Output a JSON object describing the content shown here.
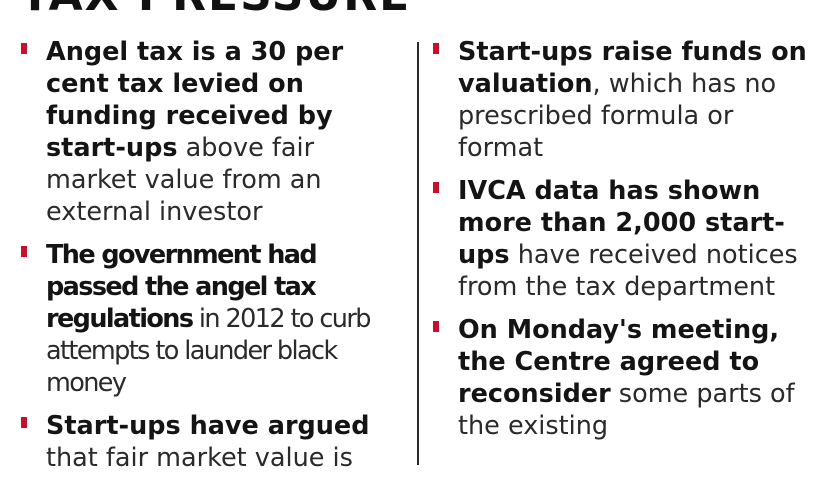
{
  "heading": "TAX PRESSURE",
  "accent_color": "#c8102e",
  "left_column": [
    {
      "bold": "Angel tax is a 30 per cent tax levied on funding received by start-ups",
      "text": " above fair market value from an external investor"
    },
    {
      "bold": "The government had passed the angel tax regulations",
      "text": " in 2012 to curb attempts to launder black money"
    },
    {
      "bold": "Start-ups have argued",
      "text": " that fair market value is"
    }
  ],
  "right_column": [
    {
      "bold": "Start-ups raise funds on valuation",
      "text": ", which has no prescribed formula or format"
    },
    {
      "bold": "IVCA data has shown more than 2,000 start-ups",
      "text": " have received notices from the tax department"
    },
    {
      "bold": "On Monday's meeting, the Centre agreed to reconsider",
      "text": " some parts of the existing"
    }
  ]
}
